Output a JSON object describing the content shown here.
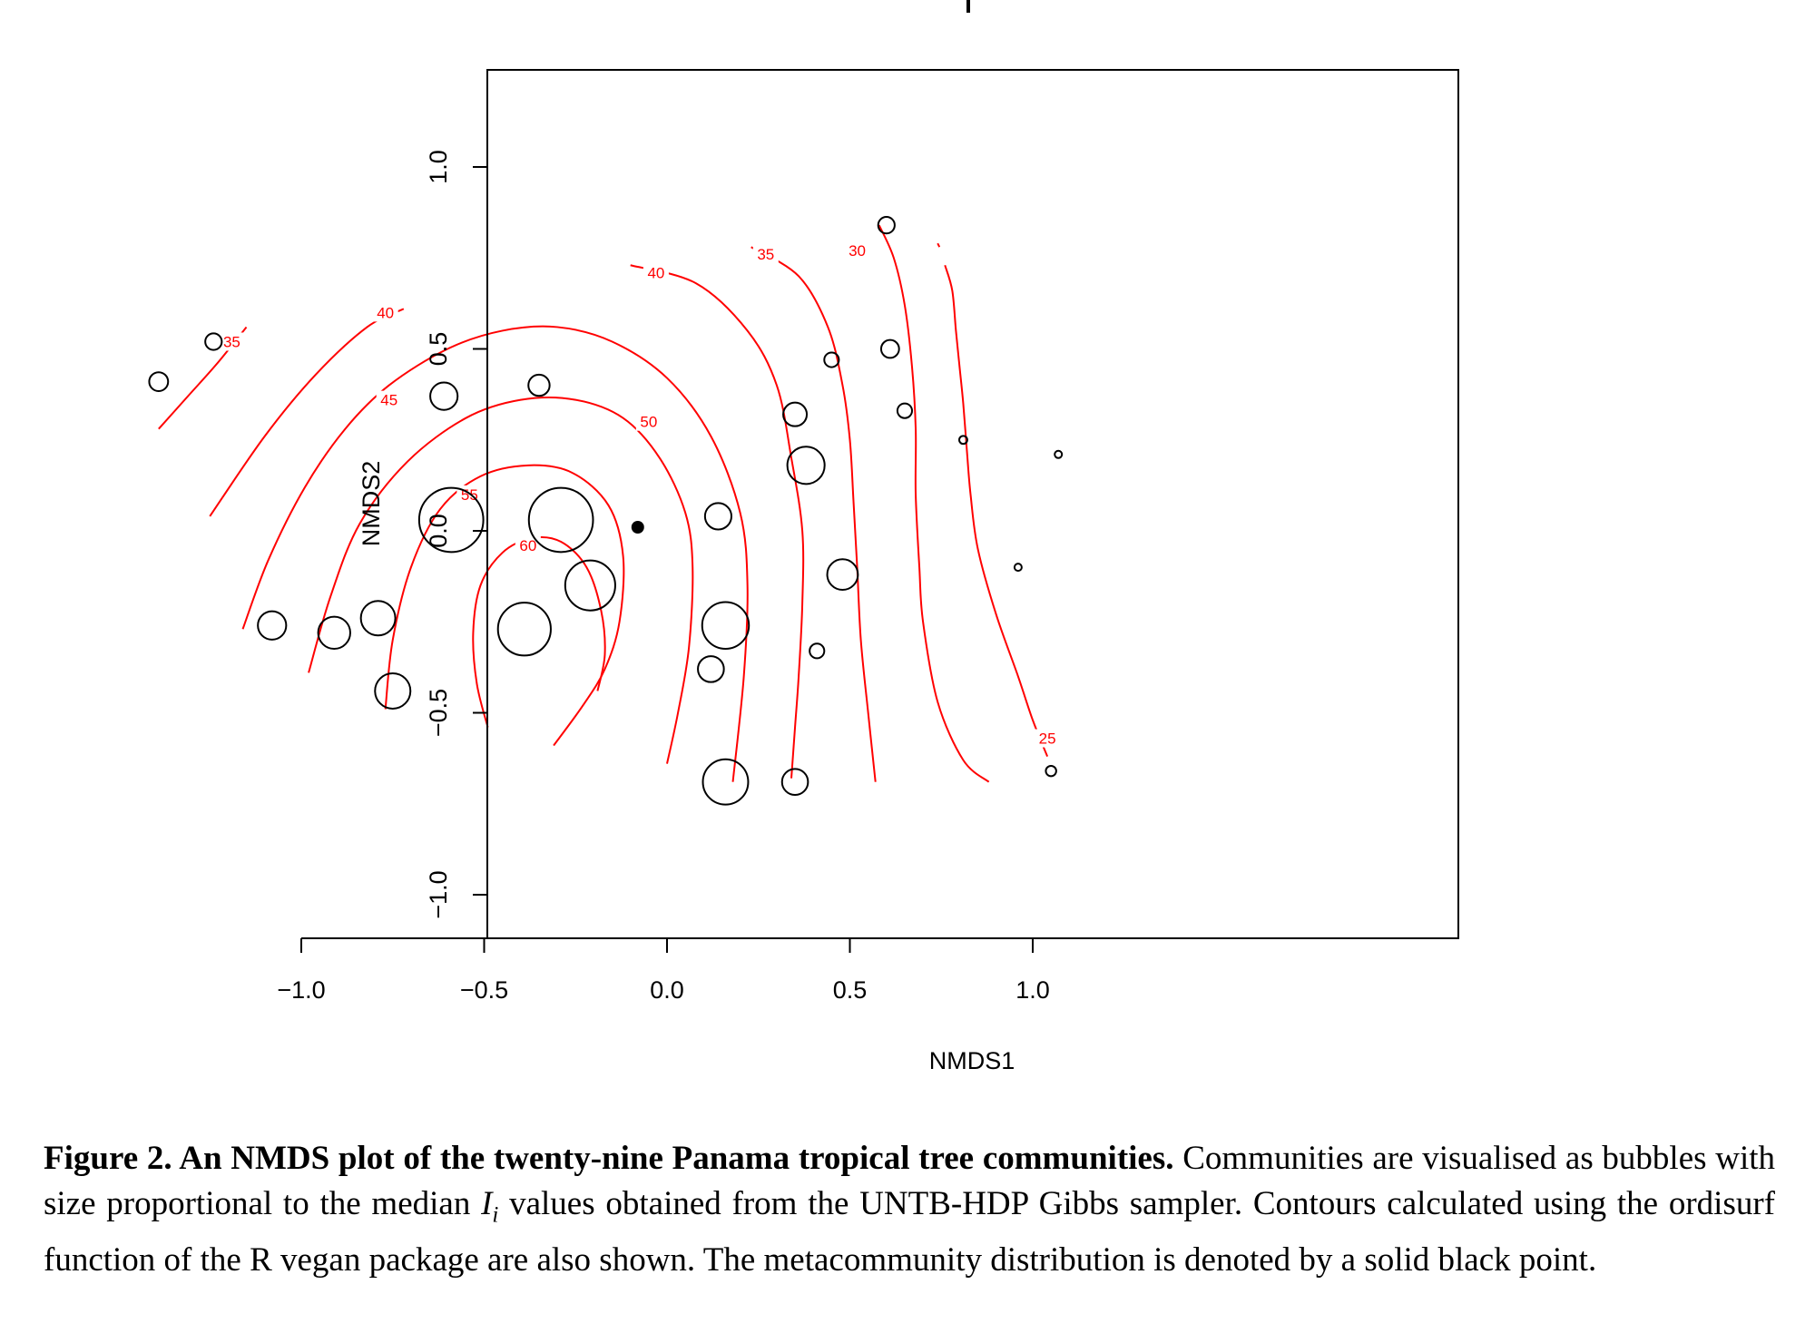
{
  "chart_data": {
    "type": "scatter",
    "xlabel": "NMDS1",
    "ylabel": "NMDS2",
    "xlim": [
      -1.5,
      1.2
    ],
    "ylim": [
      -1.12,
      1.26
    ],
    "xticks": [
      -1.0,
      -0.5,
      0.0,
      0.5,
      1.0
    ],
    "xtick_labels": [
      "−1.0",
      "−0.5",
      "0.0",
      "0.5",
      "1.0"
    ],
    "yticks": [
      -1.0,
      -0.5,
      0.0,
      0.5,
      1.0
    ],
    "ytick_labels": [
      "−1.0",
      "−0.5",
      "0.0",
      "0.5",
      "1.0"
    ],
    "grid": false,
    "legend": "none",
    "point_color": "#000000",
    "contour_color": "#ff0000",
    "communities": [
      {
        "x": -1.39,
        "y": 0.41,
        "size": 0.4
      },
      {
        "x": -1.24,
        "y": 0.52,
        "size": 0.35
      },
      {
        "x": -1.08,
        "y": -0.26,
        "size": 0.6
      },
      {
        "x": -0.91,
        "y": -0.28,
        "size": 0.68
      },
      {
        "x": -0.79,
        "y": -0.24,
        "size": 0.73
      },
      {
        "x": -0.75,
        "y": -0.44,
        "size": 0.75
      },
      {
        "x": -0.61,
        "y": 0.37,
        "size": 0.58
      },
      {
        "x": -0.59,
        "y": 0.03,
        "size": 1.36
      },
      {
        "x": -0.39,
        "y": -0.27,
        "size": 1.12
      },
      {
        "x": -0.35,
        "y": 0.4,
        "size": 0.45
      },
      {
        "x": -0.29,
        "y": 0.03,
        "size": 1.36
      },
      {
        "x": -0.21,
        "y": -0.15,
        "size": 1.06
      },
      {
        "x": 0.12,
        "y": -0.38,
        "size": 0.55
      },
      {
        "x": 0.14,
        "y": 0.04,
        "size": 0.56
      },
      {
        "x": 0.16,
        "y": -0.26,
        "size": 0.99
      },
      {
        "x": 0.16,
        "y": -0.69,
        "size": 0.96
      },
      {
        "x": 0.35,
        "y": 0.32,
        "size": 0.5
      },
      {
        "x": 0.35,
        "y": -0.69,
        "size": 0.55
      },
      {
        "x": 0.38,
        "y": 0.18,
        "size": 0.79
      },
      {
        "x": 0.41,
        "y": -0.33,
        "size": 0.31
      },
      {
        "x": 0.45,
        "y": 0.47,
        "size": 0.31
      },
      {
        "x": 0.48,
        "y": -0.12,
        "size": 0.65
      },
      {
        "x": 0.6,
        "y": 0.84,
        "size": 0.35
      },
      {
        "x": 0.61,
        "y": 0.5,
        "size": 0.38
      },
      {
        "x": 0.65,
        "y": 0.33,
        "size": 0.31
      },
      {
        "x": 0.81,
        "y": 0.25,
        "size": 0.17
      },
      {
        "x": 0.96,
        "y": -0.1,
        "size": 0.1
      },
      {
        "x": 1.05,
        "y": -0.66,
        "size": 0.22
      },
      {
        "x": 1.07,
        "y": 0.21,
        "size": 0.13
      }
    ],
    "metacommunity": {
      "x": -0.08,
      "y": 0.01
    },
    "contours": [
      {
        "level": 25,
        "label": "25",
        "points": [
          [
            0.76,
            0.73
          ],
          [
            0.78,
            0.66
          ],
          [
            0.79,
            0.55
          ],
          [
            0.8,
            0.45
          ],
          [
            0.81,
            0.35
          ],
          [
            0.82,
            0.22
          ],
          [
            0.83,
            0.1
          ],
          [
            0.85,
            -0.05
          ],
          [
            0.9,
            -0.23
          ],
          [
            0.96,
            -0.4
          ],
          [
            1.0,
            -0.52
          ],
          [
            1.04,
            -0.62
          ]
        ],
        "label_at": [
          1.04,
          -0.57
        ]
      },
      {
        "level": 25,
        "label": "",
        "points": [
          [
            0.74,
            0.79
          ],
          [
            0.745,
            0.78
          ]
        ],
        "label_at": null
      },
      {
        "level": 30,
        "label": "30",
        "points": [
          [
            0.58,
            0.84
          ],
          [
            0.62,
            0.75
          ],
          [
            0.65,
            0.62
          ],
          [
            0.67,
            0.45
          ],
          [
            0.68,
            0.28
          ],
          [
            0.68,
            0.1
          ],
          [
            0.69,
            -0.1
          ],
          [
            0.7,
            -0.25
          ],
          [
            0.74,
            -0.47
          ],
          [
            0.81,
            -0.63
          ],
          [
            0.88,
            -0.69
          ]
        ],
        "label_at": [
          0.52,
          0.77
        ]
      },
      {
        "level": 35,
        "label": "35",
        "points": [
          [
            0.23,
            0.78
          ],
          [
            0.36,
            0.7
          ],
          [
            0.44,
            0.56
          ],
          [
            0.48,
            0.4
          ],
          [
            0.5,
            0.25
          ],
          [
            0.51,
            0.08
          ],
          [
            0.52,
            -0.1
          ],
          [
            0.53,
            -0.3
          ],
          [
            0.55,
            -0.5
          ],
          [
            0.57,
            -0.69
          ]
        ],
        "label_at": [
          0.27,
          0.76
        ]
      },
      {
        "level": 35,
        "label": "35",
        "points": [
          [
            -1.39,
            0.28
          ],
          [
            -1.31,
            0.37
          ],
          [
            -1.23,
            0.46
          ],
          [
            -1.15,
            0.56
          ]
        ],
        "label_at": [
          -1.19,
          0.52
        ]
      },
      {
        "level": 40,
        "label": "40",
        "points": [
          [
            -1.25,
            0.04
          ],
          [
            -1.1,
            0.26
          ],
          [
            -0.96,
            0.43
          ],
          [
            -0.82,
            0.56
          ],
          [
            -0.72,
            0.61
          ]
        ],
        "label_at": [
          -0.77,
          0.6
        ]
      },
      {
        "level": 40,
        "label": "40",
        "points": [
          [
            -0.1,
            0.73
          ],
          [
            0.08,
            0.68
          ],
          [
            0.22,
            0.55
          ],
          [
            0.3,
            0.4
          ],
          [
            0.34,
            0.2
          ],
          [
            0.37,
            0.0
          ],
          [
            0.37,
            -0.2
          ],
          [
            0.36,
            -0.4
          ],
          [
            0.35,
            -0.54
          ],
          [
            0.34,
            -0.68
          ]
        ],
        "label_at": [
          -0.03,
          0.71
        ]
      },
      {
        "level": 45,
        "label": "45",
        "points": [
          [
            -1.16,
            -0.27
          ],
          [
            -1.09,
            -0.08
          ],
          [
            -0.99,
            0.12
          ],
          [
            -0.88,
            0.28
          ],
          [
            -0.76,
            0.4
          ],
          [
            -0.6,
            0.5
          ],
          [
            -0.45,
            0.55
          ],
          [
            -0.3,
            0.56
          ],
          [
            -0.15,
            0.52
          ],
          [
            0.0,
            0.42
          ],
          [
            0.12,
            0.26
          ],
          [
            0.2,
            0.05
          ],
          [
            0.22,
            -0.15
          ],
          [
            0.21,
            -0.4
          ],
          [
            0.18,
            -0.69
          ]
        ],
        "label_at": [
          -0.76,
          0.36
        ]
      },
      {
        "level": 50,
        "label": "50",
        "points": [
          [
            -0.98,
            -0.39
          ],
          [
            -0.92,
            -0.18
          ],
          [
            -0.84,
            0.02
          ],
          [
            -0.71,
            0.19
          ],
          [
            -0.55,
            0.31
          ],
          [
            -0.4,
            0.36
          ],
          [
            -0.25,
            0.36
          ],
          [
            -0.12,
            0.31
          ],
          [
            -0.02,
            0.2
          ],
          [
            0.05,
            0.05
          ],
          [
            0.07,
            -0.1
          ],
          [
            0.06,
            -0.32
          ],
          [
            0.03,
            -0.5
          ],
          [
            0.0,
            -0.64
          ]
        ],
        "label_at": [
          -0.05,
          0.3
        ]
      },
      {
        "level": 55,
        "label": "55",
        "points": [
          [
            -0.77,
            -0.49
          ],
          [
            -0.75,
            -0.3
          ],
          [
            -0.7,
            -0.1
          ],
          [
            -0.62,
            0.06
          ],
          [
            -0.51,
            0.15
          ],
          [
            -0.38,
            0.18
          ],
          [
            -0.26,
            0.16
          ],
          [
            -0.16,
            0.07
          ],
          [
            -0.12,
            -0.07
          ],
          [
            -0.13,
            -0.25
          ],
          [
            -0.17,
            -0.38
          ],
          [
            -0.23,
            -0.48
          ],
          [
            -0.31,
            -0.59
          ]
        ],
        "label_at": [
          -0.54,
          0.1
        ]
      },
      {
        "level": 60,
        "label": "60",
        "points": [
          [
            -0.49,
            -0.54
          ],
          [
            -0.52,
            -0.42
          ],
          [
            -0.53,
            -0.28
          ],
          [
            -0.51,
            -0.15
          ],
          [
            -0.45,
            -0.06
          ],
          [
            -0.37,
            -0.02
          ],
          [
            -0.29,
            -0.03
          ],
          [
            -0.22,
            -0.1
          ],
          [
            -0.18,
            -0.22
          ],
          [
            -0.17,
            -0.34
          ],
          [
            -0.19,
            -0.44
          ]
        ],
        "label_at": [
          -0.38,
          -0.04
        ]
      }
    ]
  },
  "caption": {
    "title": "Figure 2.  An NMDS plot of the twenty-nine Panama tropical tree communities.",
    "body_before_math": "Communities are visualised as bubbles with size proportional to the median ",
    "math_symbol": "I",
    "math_subscript": "i",
    "body_after_math": " values obtained from the UNTB-HDP Gibbs sampler. Contours calculated using the ordisurf function of the R vegan package are also shown. The metacommunity distribution is denoted by a solid black point."
  }
}
